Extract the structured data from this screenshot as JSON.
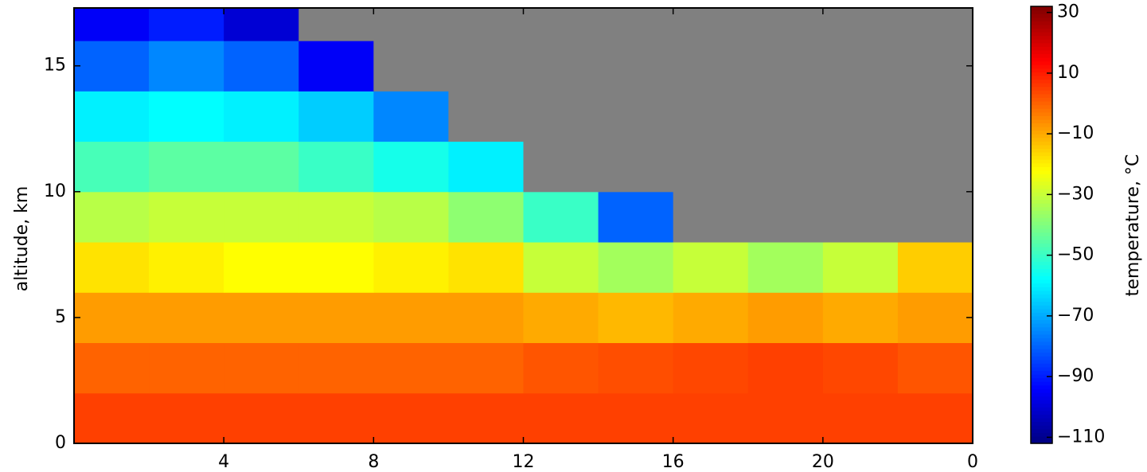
{
  "chart_data": {
    "type": "heatmap",
    "xlim": [
      0,
      24
    ],
    "xticks": [
      4,
      8,
      12,
      16,
      20,
      {
        "value": 24,
        "label": "0"
      }
    ],
    "ylabel": "altitude, km",
    "ylim": [
      0,
      17.3
    ],
    "yticks": [
      0,
      5,
      10,
      15
    ],
    "xbins": [
      0,
      2,
      4,
      6,
      8,
      10,
      12,
      14,
      16,
      18,
      20,
      22,
      24
    ],
    "ybins": [
      0,
      2,
      4,
      6,
      8,
      10,
      12,
      14,
      16,
      17.3
    ],
    "z": [
      [
        5,
        5,
        5,
        5,
        5,
        5,
        5,
        5,
        5,
        5,
        5,
        5
      ],
      [
        0,
        0,
        0,
        0,
        0,
        0,
        2,
        3,
        4,
        5,
        4,
        2
      ],
      [
        -8,
        -8,
        -8,
        -8,
        -8,
        -8,
        -10,
        -12,
        -10,
        -8,
        -10,
        -8
      ],
      [
        -18,
        -20,
        -22,
        -22,
        -20,
        -18,
        -30,
        -35,
        -30,
        -35,
        -30,
        -15
      ],
      [
        -32,
        -30,
        -30,
        -30,
        -32,
        -38,
        -50,
        -80,
        null,
        null,
        null,
        null
      ],
      [
        -48,
        -45,
        -45,
        -50,
        -55,
        -60,
        null,
        null,
        null,
        null,
        null,
        null
      ],
      [
        -60,
        -58,
        -60,
        -65,
        -75,
        null,
        null,
        null,
        null,
        null,
        null,
        null
      ],
      [
        -80,
        -75,
        -80,
        -95,
        null,
        null,
        null,
        null,
        null,
        null,
        null,
        null
      ],
      [
        -95,
        -90,
        -100,
        null,
        null,
        null,
        null,
        null,
        null,
        null,
        null,
        null
      ]
    ],
    "colormap": "jet",
    "nan_color": "#808080",
    "colorbar_label": "temperature, °C",
    "zlim": [
      -112,
      32
    ],
    "zticks": [
      30,
      10,
      {
        "value": -10,
        "label": "−10"
      },
      {
        "value": -30,
        "label": "−30"
      },
      {
        "value": -50,
        "label": "−50"
      },
      {
        "value": -70,
        "label": "−70"
      },
      {
        "value": -90,
        "label": "−90"
      },
      {
        "value": -110,
        "label": "−110"
      }
    ]
  }
}
